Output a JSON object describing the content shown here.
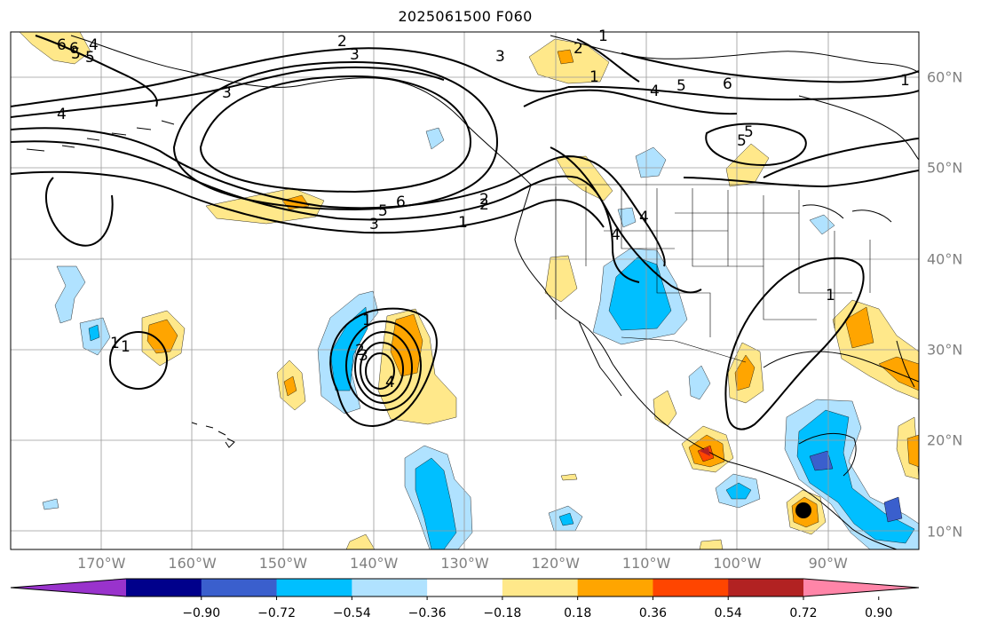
{
  "title": "2025061500 F060",
  "longitude_labels": [
    {
      "label": "170°W",
      "lon": -170
    },
    {
      "label": "160°W",
      "lon": -160
    },
    {
      "label": "150°W",
      "lon": -150
    },
    {
      "label": "140°W",
      "lon": -140
    },
    {
      "label": "130°W",
      "lon": -130
    },
    {
      "label": "120°W",
      "lon": -120
    },
    {
      "label": "110°W",
      "lon": -110
    },
    {
      "label": "100°W",
      "lon": -100
    },
    {
      "label": "90°W",
      "lon": -90
    }
  ],
  "latitude_labels": [
    {
      "label": "60°N",
      "lat": 60
    },
    {
      "label": "50°N",
      "lat": 50
    },
    {
      "label": "40°N",
      "lat": 40
    },
    {
      "label": "30°N",
      "lat": 30
    },
    {
      "label": "20°N",
      "lat": 20
    },
    {
      "label": "10°N",
      "lat": 10
    }
  ],
  "map_extent": {
    "lon_min": -180,
    "lon_max": -80,
    "lat_min": 8,
    "lat_max": 65
  },
  "colorbar": {
    "colors": [
      "#9933cc",
      "#00008b",
      "#3a5fcd",
      "#00bfff",
      "#b0e2ff",
      "#ffffff",
      "#ffe88a",
      "#ffa500",
      "#ff4500",
      "#b22222",
      "#ff85a8"
    ],
    "ticks": [
      "−0.90",
      "−0.72",
      "−0.54",
      "−0.36",
      "−0.18",
      "0.18",
      "0.36",
      "0.54",
      "0.72",
      "0.90"
    ],
    "extend": "both"
  },
  "contour_labels": [
    "1",
    "2",
    "3",
    "4",
    "5",
    "6",
    "1",
    "2",
    "3",
    "4",
    "5",
    "6",
    "1",
    "2",
    "3",
    "4",
    "5",
    "6",
    "1",
    "2",
    "3",
    "4",
    "5",
    "1",
    "1",
    "2",
    "3",
    "4",
    "5",
    "6",
    "4",
    "5",
    "1",
    "1"
  ]
}
